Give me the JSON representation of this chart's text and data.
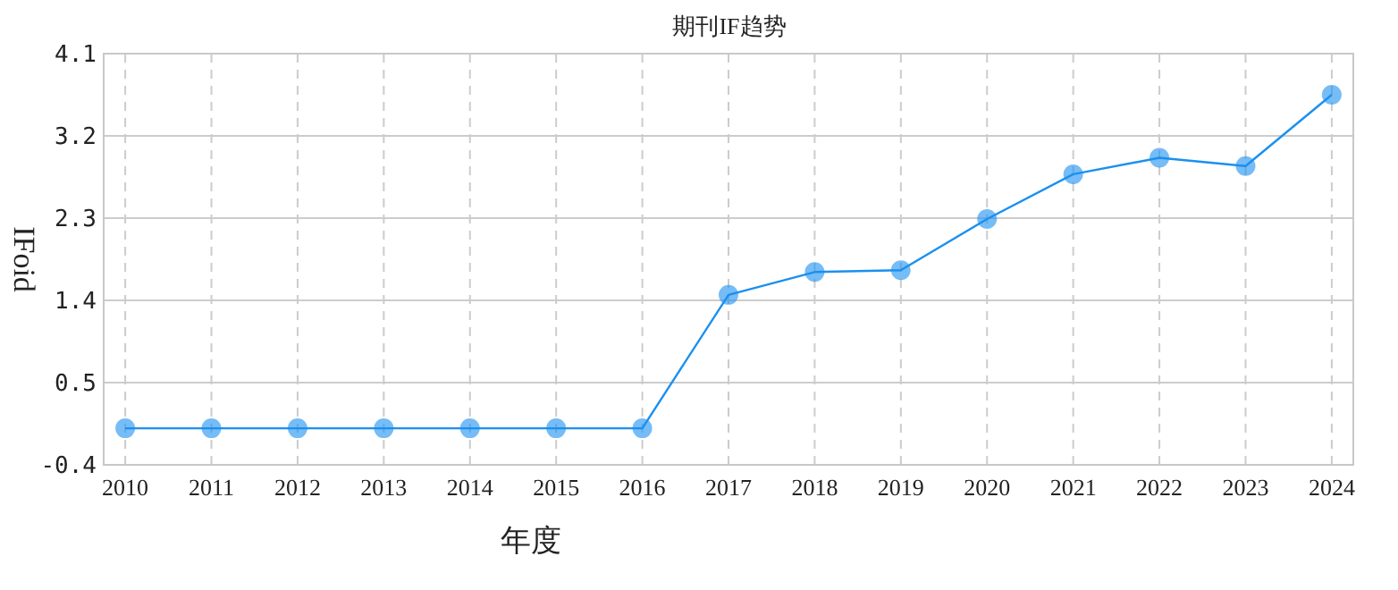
{
  "chart_data": {
    "type": "line",
    "title": "期刊IF趋势",
    "xlabel": "年度",
    "ylabel": "IFoid",
    "categories": [
      "2010",
      "2011",
      "2012",
      "2013",
      "2014",
      "2015",
      "2016",
      "2017",
      "2018",
      "2019",
      "2020",
      "2021",
      "2022",
      "2023",
      "2024"
    ],
    "series": [
      {
        "color": "#1a90f0",
        "values": [
          0,
          0,
          0,
          0,
          0,
          0,
          0,
          1.46,
          1.71,
          1.73,
          2.29,
          2.78,
          2.96,
          2.87,
          3.65
        ]
      }
    ],
    "ylim": [
      -0.4,
      4.1
    ],
    "yticks": [
      -0.4,
      0.5,
      1.4,
      2.3,
      3.2,
      4.1
    ],
    "grid": true,
    "marker": "circle",
    "line_style": "solid"
  }
}
